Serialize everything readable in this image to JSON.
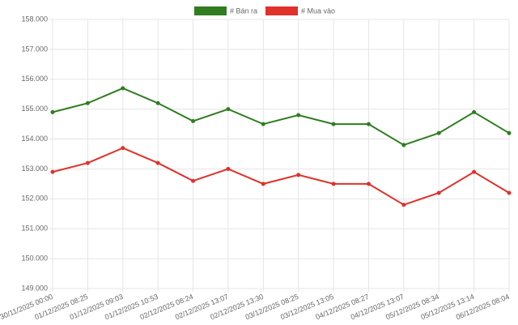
{
  "chart_data": {
    "type": "line",
    "categories": [
      "30/11/2025 00:00",
      "01/12/2025 08:25",
      "01/12/2025 09:03",
      "01/12/2025 10:53",
      "02/12/2025 08:24",
      "02/12/2025 13:07",
      "02/12/2025 13:30",
      "03/12/2025 08:25",
      "03/12/2025 13:05",
      "04/12/2025 08:27",
      "04/12/2025 13:07",
      "05/12/2025 08:34",
      "05/12/2025 13:14",
      "06/12/2025 08:04"
    ],
    "series": [
      {
        "name": "# Bán ra",
        "color": "#2f7d1f",
        "values": [
          154900,
          155200,
          155700,
          155200,
          154600,
          155000,
          154500,
          154800,
          154500,
          154500,
          153800,
          154200,
          154900,
          154200
        ]
      },
      {
        "name": "# Mua vào",
        "color": "#e0312a",
        "values": [
          152900,
          153200,
          153700,
          153200,
          152600,
          153000,
          152500,
          152800,
          152500,
          152500,
          151800,
          152200,
          152900,
          152200
        ]
      }
    ],
    "ylim": [
      149000,
      158000
    ],
    "yticks": [
      {
        "value": 149000,
        "label": "149.000"
      },
      {
        "value": 150000,
        "label": "150.000"
      },
      {
        "value": 151000,
        "label": "151.000"
      },
      {
        "value": 152000,
        "label": "152.000"
      },
      {
        "value": 153000,
        "label": "153.000"
      },
      {
        "value": 154000,
        "label": "154.000"
      },
      {
        "value": 155000,
        "label": "155.000"
      },
      {
        "value": 156000,
        "label": "156.000"
      },
      {
        "value": 157000,
        "label": "157.000"
      },
      {
        "value": 158000,
        "label": "158.000"
      }
    ],
    "grid": true,
    "legend": "top"
  }
}
